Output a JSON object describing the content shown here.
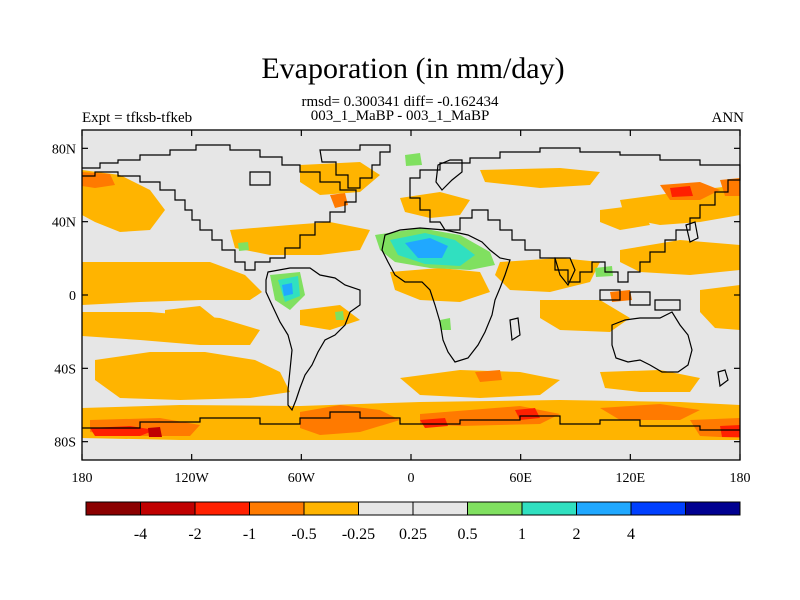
{
  "figure": {
    "title": "Evaporation (in mm/day)",
    "stats": "rmsd= 0.300341 diff= -0.162434",
    "case": "003_1_MaBP - 003_1_MaBP",
    "left_label": "Expt = tfksb-tfkeb",
    "right_label": "ANN"
  },
  "axes": {
    "lat_ticks": [
      {
        "value": 80,
        "label": "80N"
      },
      {
        "value": 40,
        "label": "40N"
      },
      {
        "value": 0,
        "label": "0"
      },
      {
        "value": -40,
        "label": "40S"
      },
      {
        "value": -80,
        "label": "80S"
      }
    ],
    "lon_ticks": [
      {
        "value": -180,
        "label": "180"
      },
      {
        "value": -120,
        "label": "120W"
      },
      {
        "value": -60,
        "label": "60W"
      },
      {
        "value": 0,
        "label": "0"
      },
      {
        "value": 60,
        "label": "60E"
      },
      {
        "value": 120,
        "label": "120E"
      },
      {
        "value": 180,
        "label": "180"
      }
    ],
    "lon_range": [
      -180,
      180
    ],
    "lat_range": [
      -90,
      90
    ]
  },
  "colorbar": {
    "colors": [
      "#8b0000",
      "#c00000",
      "#ff2000",
      "#ff7a00",
      "#ffb400",
      "#e6e6e6",
      "#e6e6e6",
      "#80e060",
      "#30e0c0",
      "#20a8ff",
      "#0040ff",
      "#000090"
    ],
    "labels": [
      "-4",
      "-2",
      "-1",
      "-0.5",
      "-0.25",
      "0.25",
      "0.5",
      "1",
      "2",
      "4"
    ]
  },
  "colors": {
    "background": "#e6e6e6",
    "negative_light": "#ffb400",
    "negative_mid": "#ff7a00",
    "negative_strong": "#ff2000",
    "negative_dark": "#c00000",
    "positive_light": "#80e060",
    "positive_mid": "#30e0c0",
    "positive_strong": "#20a8ff"
  }
}
